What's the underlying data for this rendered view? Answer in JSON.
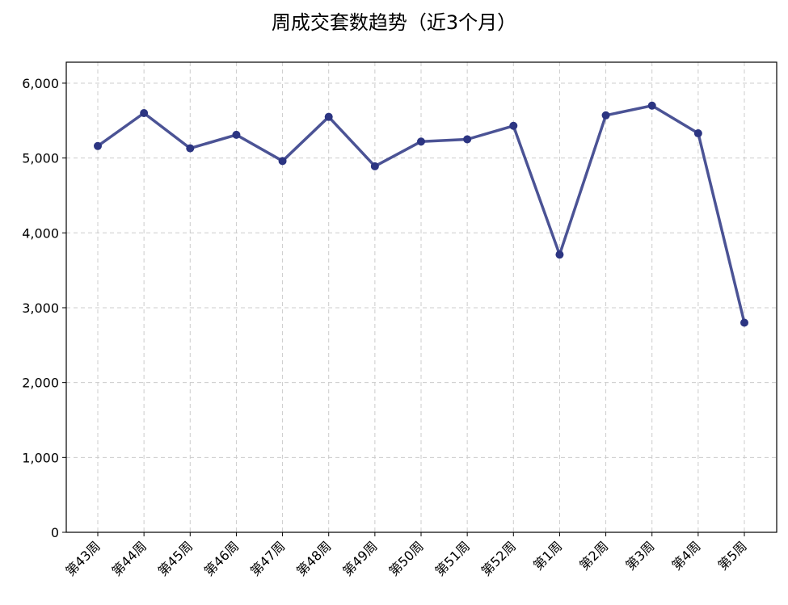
{
  "chart_data": {
    "type": "line",
    "title": "周成交套数趋势（近3个月）",
    "xlabel": "",
    "ylabel": "",
    "categories": [
      "第43周",
      "第44周",
      "第45周",
      "第46周",
      "第47周",
      "第48周",
      "第49周",
      "第50周",
      "第51周",
      "第52周",
      "第1周",
      "第2周",
      "第3周",
      "第4周",
      "第5周"
    ],
    "series": [
      {
        "values": [
          5160,
          5600,
          5130,
          5310,
          4960,
          5550,
          4890,
          5220,
          5250,
          5430,
          3710,
          5570,
          5700,
          5330,
          2800
        ],
        "color": "#2c3582"
      }
    ],
    "ylim": [
      0,
      6280
    ],
    "yticks": [
      0,
      1000,
      2000,
      3000,
      4000,
      5000,
      6000
    ],
    "ytick_labels": [
      "0",
      "1,000",
      "2,000",
      "3,000",
      "4,000",
      "5,000",
      "6,000"
    ],
    "grid": true,
    "legend": "none"
  }
}
